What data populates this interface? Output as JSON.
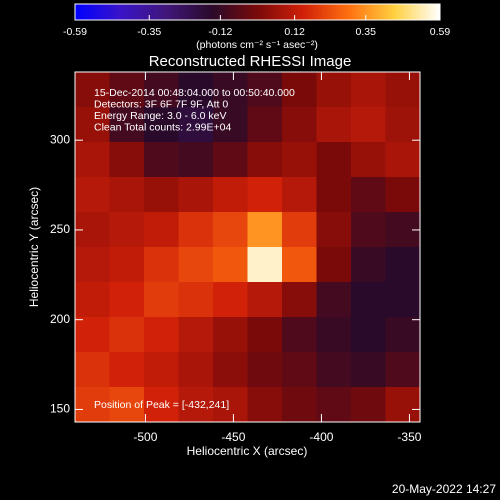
{
  "chart_data": {
    "type": "heatmap",
    "title": "Reconstructed RHESSI Image",
    "x_label": "Heliocentric X (arcsec)",
    "y_label": "Heliocentric Y (arcsec)",
    "colorbar_label": "(photons cm⁻² s⁻¹ asec⁻²)",
    "clim": [
      -0.59,
      0.59
    ],
    "colorbar_ticks": [
      -0.59,
      -0.35,
      -0.12,
      0.12,
      0.35,
      0.59
    ],
    "colormap": [
      "#0000ff",
      "#3a14c8",
      "#40167a",
      "#2a0a2a",
      "#7a0a0a",
      "#d02008",
      "#ff7010",
      "#ffd040",
      "#ffffff"
    ],
    "xlim": [
      -540,
      -344
    ],
    "ylim": [
      143,
      338
    ],
    "xticks": [
      -500,
      -450,
      -400,
      -350
    ],
    "yticks": [
      150,
      200,
      250,
      300
    ],
    "annotations": [
      "15-Dec-2014 00:48:04.000 to 00:50:40.000",
      "Detectors: 3F 6F 7F 9F, Att 0",
      "Energy Range: 3.0 - 6.0 keV",
      "Clean     Total counts: 2.99E+04"
    ],
    "peak_label": "Position of Peak = [-432,241]",
    "footer": "20-May-2022 14:27",
    "z": [
      [
        0.02,
        -0.05,
        -0.1,
        -0.15,
        -0.12,
        -0.08,
        0.0,
        0.05,
        0.08,
        0.05
      ],
      [
        0.05,
        -0.1,
        -0.15,
        -0.18,
        -0.12,
        -0.05,
        0.02,
        0.08,
        0.1,
        0.06
      ],
      [
        0.08,
        0.02,
        -0.08,
        -0.1,
        -0.05,
        0.02,
        0.05,
        0.0,
        0.05,
        0.08
      ],
      [
        0.1,
        0.08,
        0.05,
        0.08,
        0.12,
        0.15,
        0.1,
        0.0,
        -0.05,
        0.0
      ],
      [
        0.08,
        0.1,
        0.12,
        0.18,
        0.22,
        0.35,
        0.2,
        0.02,
        -0.08,
        -0.1
      ],
      [
        0.1,
        0.12,
        0.18,
        0.22,
        0.25,
        0.55,
        0.25,
        0.0,
        -0.12,
        -0.15
      ],
      [
        0.12,
        0.15,
        0.2,
        0.18,
        0.15,
        0.1,
        0.02,
        -0.1,
        -0.15,
        -0.15
      ],
      [
        0.15,
        0.18,
        0.15,
        0.1,
        0.05,
        0.0,
        -0.08,
        -0.12,
        -0.15,
        -0.12
      ],
      [
        0.18,
        0.15,
        0.12,
        0.08,
        0.03,
        -0.02,
        -0.05,
        -0.1,
        -0.12,
        -0.08
      ],
      [
        0.2,
        0.22,
        0.15,
        0.1,
        0.08,
        0.02,
        -0.02,
        -0.05,
        -0.02,
        0.05
      ]
    ]
  }
}
